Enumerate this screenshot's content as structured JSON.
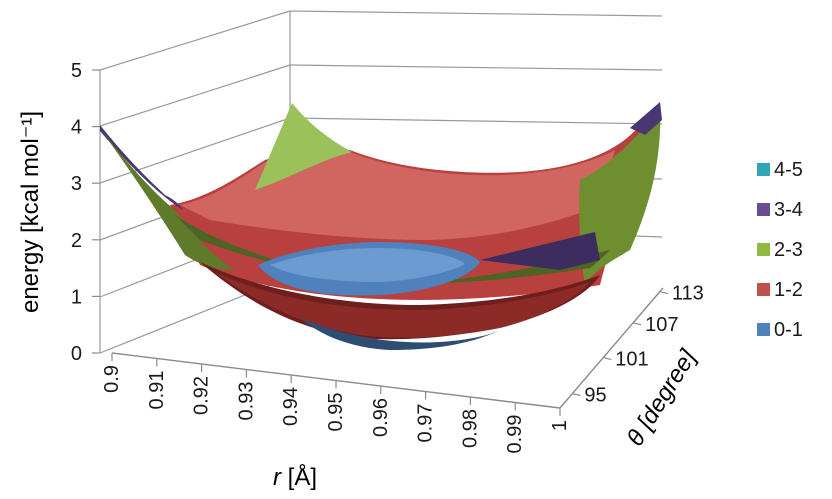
{
  "chart_data": {
    "type": "surface",
    "ylabel": "energy [kcal mol⁻¹]",
    "xlabel_symbol": "r",
    "xlabel_unit": " [Å]",
    "zlabel_symbol": "θ",
    "zlabel_unit": " [degree]",
    "y_ticks": [
      "0",
      "1",
      "2",
      "3",
      "4",
      "5"
    ],
    "ylim": [
      0,
      5
    ],
    "x_ticks": [
      "0.9",
      "0.91",
      "0.92",
      "0.93",
      "0.94",
      "0.95",
      "0.96",
      "0.97",
      "0.98",
      "0.99",
      "1"
    ],
    "z_ticks": [
      "95",
      "101",
      "107",
      "113"
    ],
    "legend_position": "right",
    "legend": [
      {
        "label": "4-5",
        "color": "#2fa7b5"
      },
      {
        "label": "3-4",
        "color": "#6a4c93"
      },
      {
        "label": "2-3",
        "color": "#92b83f"
      },
      {
        "label": "1-2",
        "color": "#c0504d"
      },
      {
        "label": "0-1",
        "color": "#4f81bd"
      }
    ],
    "grid": true
  }
}
